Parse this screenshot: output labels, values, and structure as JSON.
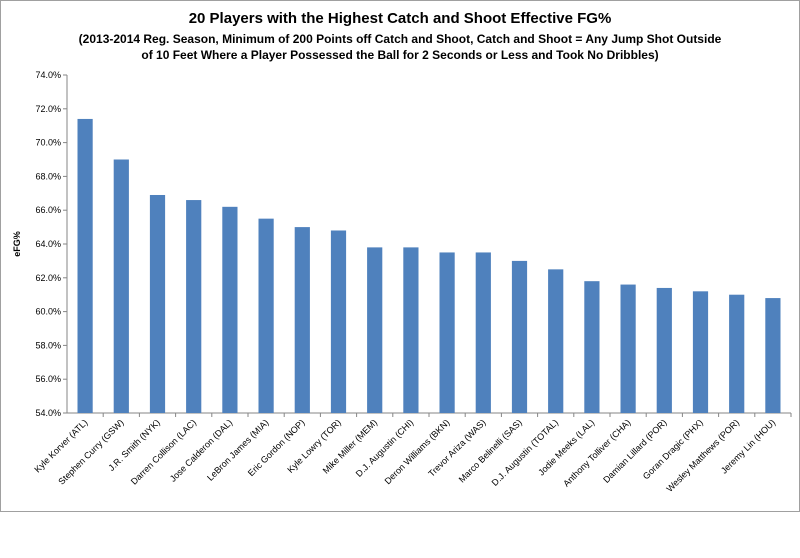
{
  "chart_data": {
    "type": "bar",
    "title": "20 Players with the Highest Catch and Shoot Effective FG%",
    "subtitle_lines": [
      "(2013-2014 Reg. Season, Minimum of 200 Points off Catch and Shoot, Catch and Shoot = Any Jump Shot Outside",
      "of 10 Feet Where a Player Possessed the Ball for 2 Seconds or Less and Took No Dribbles)"
    ],
    "xlabel": "",
    "ylabel": "eFG%",
    "ylim": [
      54.0,
      74.0
    ],
    "ytick_step": 2.0,
    "yticks": [
      "54.0%",
      "56.0%",
      "58.0%",
      "60.0%",
      "62.0%",
      "64.0%",
      "66.0%",
      "68.0%",
      "70.0%",
      "72.0%",
      "74.0%"
    ],
    "grid": false,
    "legend": "none",
    "bar_color": "#4f81bd",
    "categories": [
      "Kyle Korver (ATL)",
      "Stephen Curry (GSW)",
      "J.R. Smith (NYK)",
      "Darren Collison (LAC)",
      "Jose Calderon (DAL)",
      "LeBron James (MIA)",
      "Eric Gordon (NOP)",
      "Kyle Lowry (TOR)",
      "Mike Miller (MEM)",
      "D.J. Augustin (CHI)",
      "Deron Williams (BKN)",
      "Trevor Ariza (WAS)",
      "Marco Belinelli (SAS)",
      "D.J. Augustin (TOTAL)",
      "Jodie Meeks (LAL)",
      "Anthony Tolliver (CHA)",
      "Damian Lillard (POR)",
      "Goran Dragic (PHX)",
      "Wesley Matthews (POR)",
      "Jeremy Lin (HOU)"
    ],
    "values": [
      71.4,
      69.0,
      66.9,
      66.6,
      66.2,
      65.5,
      65.0,
      64.8,
      63.8,
      63.8,
      63.5,
      63.5,
      63.0,
      62.5,
      61.8,
      61.6,
      61.4,
      61.2,
      61.0,
      60.8
    ]
  }
}
